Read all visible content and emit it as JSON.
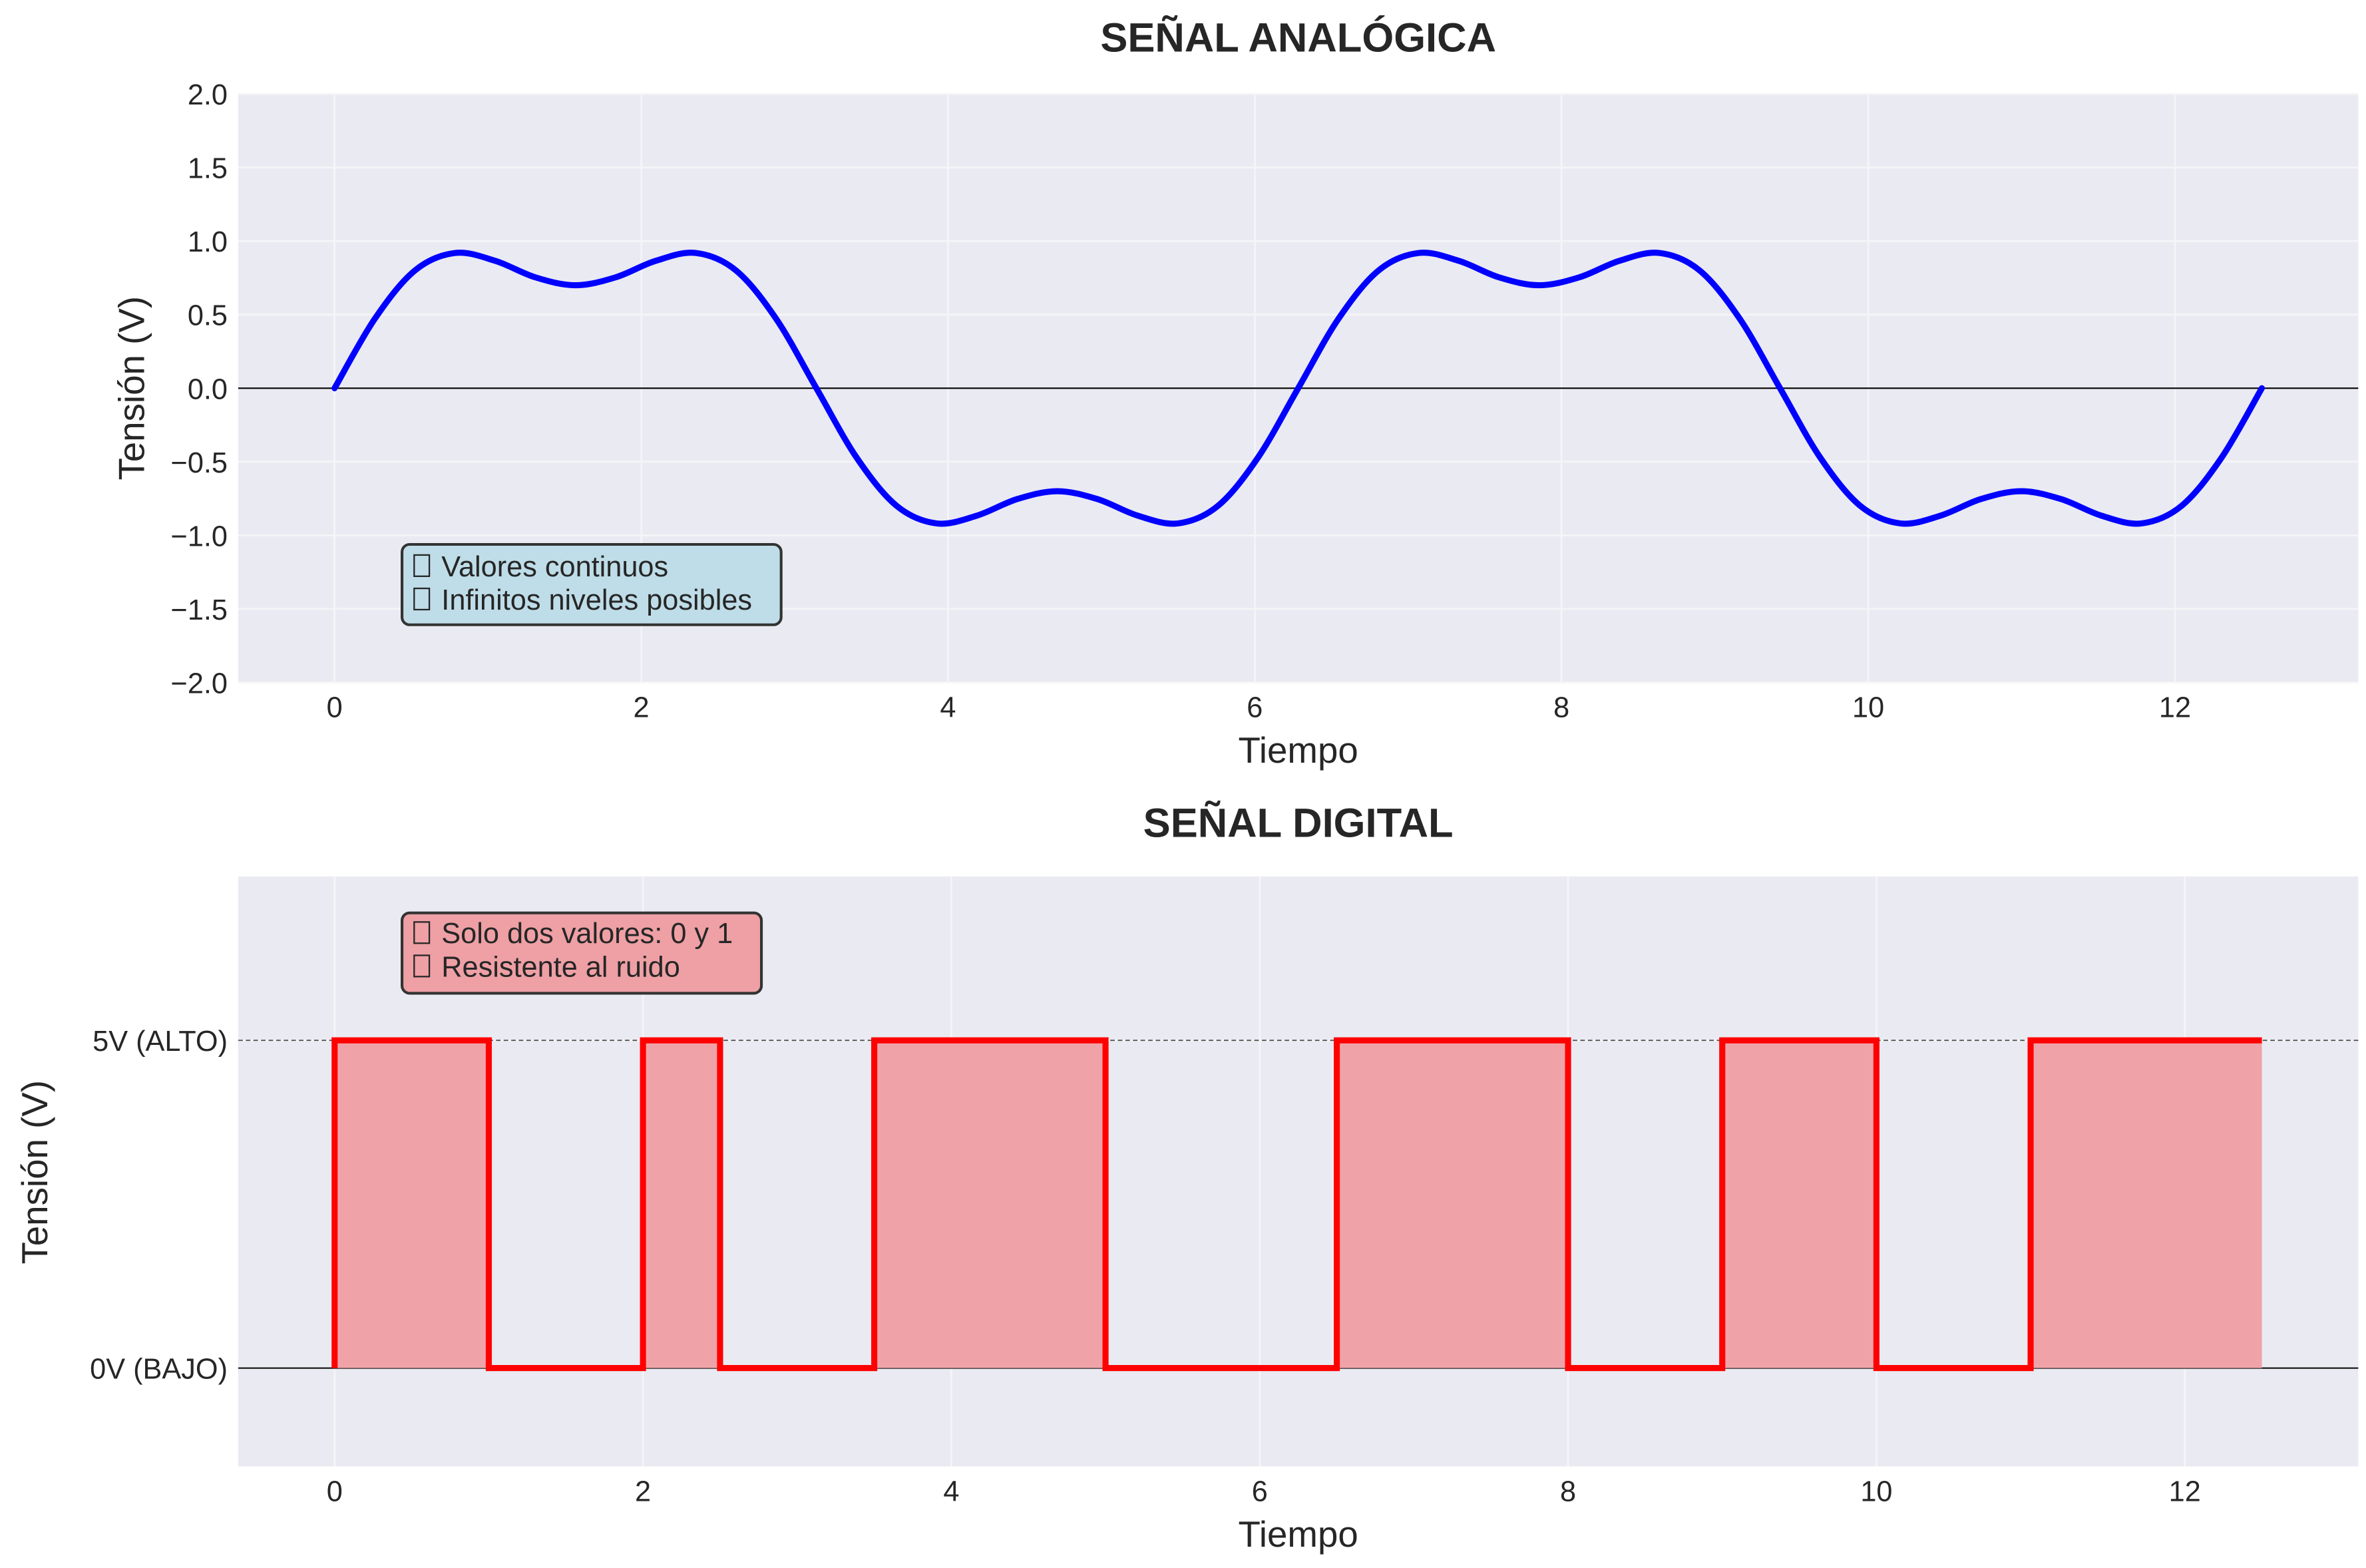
{
  "chart_data": [
    {
      "type": "line",
      "title": "SEÑAL ANALÓGICA",
      "xlabel": "Tiempo",
      "ylabel": "Tensión (V)",
      "xlim": [
        -0.628,
        13.195
      ],
      "ylim": [
        -2.0,
        2.0
      ],
      "xticks": [
        0,
        2,
        4,
        6,
        8,
        10,
        12
      ],
      "xtick_labels": [
        "0",
        "2",
        "4",
        "6",
        "8",
        "10",
        "12"
      ],
      "yticks": [
        -2.0,
        -1.5,
        -1.0,
        -0.5,
        0.0,
        0.5,
        1.0,
        1.5,
        2.0
      ],
      "ytick_labels": [
        "−2.0",
        "−1.5",
        "−1.0",
        "−0.5",
        "0.0",
        "0.5",
        "1.0",
        "1.5",
        "2.0"
      ],
      "grid": true,
      "reference_line_y": 0,
      "series": [
        {
          "color": "#0000ff",
          "x": [
            0,
            0.2618,
            0.5236,
            0.7854,
            1.0472,
            1.309,
            1.5708,
            1.8326,
            2.0944,
            2.3562,
            2.618,
            2.8798,
            3.1416,
            3.4034,
            3.6652,
            3.927,
            4.1888,
            4.4506,
            4.7124,
            4.9742,
            5.236,
            5.4978,
            5.7596,
            6.0214,
            6.2832,
            6.545,
            6.8068,
            7.0686,
            7.3304,
            7.5922,
            7.854,
            8.1158,
            8.3776,
            8.6394,
            8.9012,
            9.163,
            9.4248,
            9.6866,
            9.9484,
            10.2102,
            10.472,
            10.7338,
            10.9956,
            11.2574,
            11.5192,
            11.781,
            12.0428,
            12.3046,
            12.5664
          ],
          "y": [
            0,
            0.4709,
            0.8,
            0.9192,
            0.866,
            0.7538,
            0.7,
            0.7538,
            0.866,
            0.9192,
            0.8,
            0.4709,
            0,
            -0.4709,
            -0.8,
            -0.9192,
            -0.866,
            -0.7538,
            -0.7,
            -0.7538,
            -0.866,
            -0.9192,
            -0.8,
            -0.4709,
            0,
            0.4709,
            0.8,
            0.9192,
            0.866,
            0.7538,
            0.7,
            0.7538,
            0.866,
            0.9192,
            0.8,
            0.4709,
            0,
            -0.4709,
            -0.8,
            -0.9192,
            -0.866,
            -0.7538,
            -0.7,
            -0.7538,
            -0.866,
            -0.9192,
            -0.8,
            -0.4709,
            0
          ]
        }
      ],
      "annotation": {
        "lines": [
          "Valores continuos",
          "Infinitos niveles posibles"
        ],
        "icon": "missing-glyph-box",
        "background": "#bfdde8"
      }
    },
    {
      "type": "step",
      "title": "SEÑAL DIGITAL",
      "xlabel": "Tiempo",
      "ylabel": "Tensión (V)",
      "xlim": [
        -0.625,
        13.125
      ],
      "ylim": [
        -1.5,
        7.5
      ],
      "xticks": [
        0,
        2,
        4,
        6,
        8,
        10,
        12
      ],
      "xtick_labels": [
        "0",
        "2",
        "4",
        "6",
        "8",
        "10",
        "12"
      ],
      "yticks": [
        0,
        5
      ],
      "ytick_labels": [
        "0V (BAJO)",
        "5V (ALTO)"
      ],
      "grid": true,
      "reference_line_y": 0,
      "dashed_line_y": 5,
      "series": [
        {
          "color": "#ff0000",
          "fill_color": "#efa3a8",
          "x": [
            0,
            1,
            2,
            2.5,
            3.5,
            5,
            6.5,
            8,
            9,
            10,
            11,
            12.5
          ],
          "y": [
            5,
            0,
            5,
            0,
            5,
            0,
            5,
            0,
            5,
            0,
            5,
            5
          ]
        }
      ],
      "annotation": {
        "lines": [
          "Solo dos valores: 0 y 1",
          "Resistente al ruido"
        ],
        "icon": "missing-glyph-box",
        "background": "#eea0a5"
      }
    }
  ]
}
